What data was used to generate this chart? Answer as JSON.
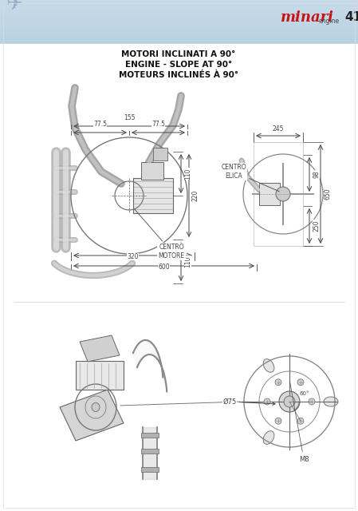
{
  "page_title_lines": [
    "MOTORI INCLINATI A 90°",
    "ENGINE - SLOPE AT 90°",
    "MOTEURS INCLINÉS À 90°"
  ],
  "page_number": "41",
  "bg_color_top": "#c8dbe8",
  "bg_color_main": "#ffffff",
  "dim_color": "#444444",
  "red_logo_color": "#cc1111",
  "fig_width": 4.49,
  "fig_height": 6.4,
  "dpi": 100
}
